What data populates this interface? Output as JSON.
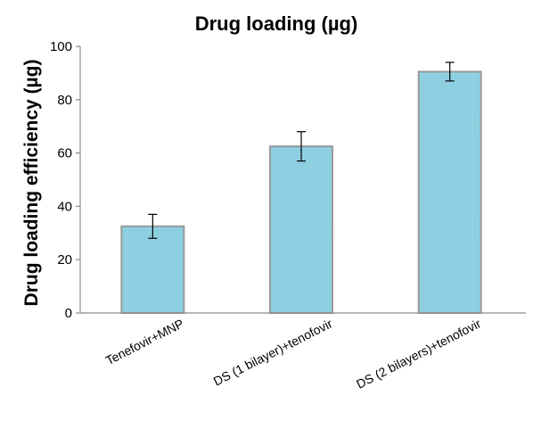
{
  "chart_data": {
    "type": "bar",
    "title": "Drug loading (µg)",
    "xlabel": "",
    "ylabel": "Drug loading efficiency (µg)",
    "categories": [
      "Tenefovir+MNP",
      "DS (1 bilayer)+tenofovir",
      "DS (2 bilayers)+tenofovir"
    ],
    "values": [
      32.5,
      62.5,
      90.5
    ],
    "errors": [
      4.5,
      5.5,
      3.5
    ],
    "ylim": [
      0,
      100
    ],
    "yticks": [
      0,
      20,
      40,
      60,
      80,
      100
    ],
    "grid": false,
    "legend": "none",
    "bar_color": "#8ccfe0",
    "bar_border_color": "#9a9a9a"
  }
}
